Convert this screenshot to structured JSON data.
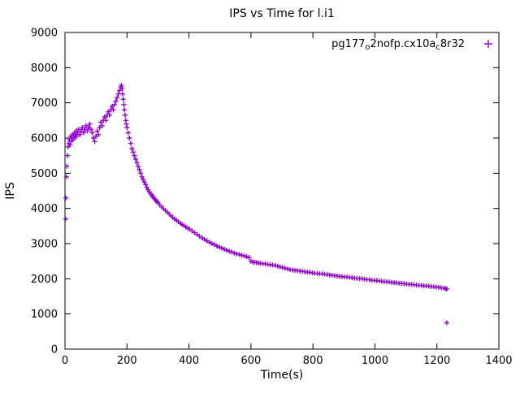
{
  "title": "IPS vs Time for l.i1",
  "legend": {
    "parts": [
      {
        "t": "pg177",
        "sub": false
      },
      {
        "t": "o",
        "sub": true
      },
      {
        "t": "2nofp.cx10a",
        "sub": false
      },
      {
        "t": "c",
        "sub": true
      },
      {
        "t": "8r32",
        "sub": false
      }
    ]
  },
  "chart_data": {
    "type": "scatter",
    "title": "IPS vs Time for l.i1",
    "xlabel": "Time(s)",
    "ylabel": "IPS",
    "xlim": [
      0,
      1400
    ],
    "ylim": [
      0,
      9000
    ],
    "xticks": [
      0,
      200,
      400,
      600,
      800,
      1000,
      1200,
      1400
    ],
    "yticks": [
      0,
      1000,
      2000,
      3000,
      4000,
      5000,
      6000,
      7000,
      8000,
      9000
    ],
    "grid": false,
    "legend_position": "top-right-inside",
    "marker": "plus",
    "marker_color": "#9400D3",
    "series": [
      {
        "name": "pg177_o2nofp.cx10a_c8r32",
        "points": [
          [
            2,
            3700
          ],
          [
            3,
            4300
          ],
          [
            5,
            4900
          ],
          [
            6,
            5200
          ],
          [
            8,
            5500
          ],
          [
            10,
            5750
          ],
          [
            12,
            5850
          ],
          [
            14,
            5950
          ],
          [
            16,
            5800
          ],
          [
            18,
            6050
          ],
          [
            20,
            5900
          ],
          [
            22,
            6000
          ],
          [
            24,
            6100
          ],
          [
            26,
            5950
          ],
          [
            28,
            6050
          ],
          [
            30,
            6150
          ],
          [
            32,
            6000
          ],
          [
            34,
            6100
          ],
          [
            36,
            6200
          ],
          [
            38,
            6050
          ],
          [
            40,
            6150
          ],
          [
            44,
            6250
          ],
          [
            48,
            6100
          ],
          [
            52,
            6200
          ],
          [
            56,
            6300
          ],
          [
            60,
            6150
          ],
          [
            64,
            6250
          ],
          [
            68,
            6350
          ],
          [
            72,
            6200
          ],
          [
            76,
            6300
          ],
          [
            80,
            6400
          ],
          [
            84,
            6250
          ],
          [
            88,
            6150
          ],
          [
            92,
            6000
          ],
          [
            96,
            5900
          ],
          [
            100,
            6050
          ],
          [
            104,
            6200
          ],
          [
            108,
            6100
          ],
          [
            112,
            6300
          ],
          [
            116,
            6450
          ],
          [
            120,
            6350
          ],
          [
            124,
            6500
          ],
          [
            128,
            6600
          ],
          [
            132,
            6500
          ],
          [
            136,
            6650
          ],
          [
            140,
            6750
          ],
          [
            144,
            6650
          ],
          [
            148,
            6800
          ],
          [
            152,
            6900
          ],
          [
            156,
            6800
          ],
          [
            160,
            6950
          ],
          [
            164,
            7050
          ],
          [
            168,
            7150
          ],
          [
            172,
            7250
          ],
          [
            176,
            7350
          ],
          [
            180,
            7450
          ],
          [
            182,
            7500
          ],
          [
            184,
            7400
          ],
          [
            186,
            7250
          ],
          [
            188,
            7100
          ],
          [
            190,
            6950
          ],
          [
            192,
            6800
          ],
          [
            194,
            6650
          ],
          [
            196,
            6500
          ],
          [
            198,
            6400
          ],
          [
            200,
            6300
          ],
          [
            204,
            6150
          ],
          [
            208,
            6000
          ],
          [
            212,
            5850
          ],
          [
            216,
            5700
          ],
          [
            220,
            5600
          ],
          [
            224,
            5500
          ],
          [
            228,
            5400
          ],
          [
            232,
            5300
          ],
          [
            236,
            5200
          ],
          [
            240,
            5100
          ],
          [
            244,
            5000
          ],
          [
            248,
            4900
          ],
          [
            252,
            4820
          ],
          [
            256,
            4750
          ],
          [
            260,
            4680
          ],
          [
            264,
            4600
          ],
          [
            268,
            4530
          ],
          [
            272,
            4470
          ],
          [
            276,
            4420
          ],
          [
            280,
            4370
          ],
          [
            284,
            4330
          ],
          [
            288,
            4280
          ],
          [
            292,
            4240
          ],
          [
            296,
            4200
          ],
          [
            300,
            4160
          ],
          [
            306,
            4100
          ],
          [
            312,
            4040
          ],
          [
            318,
            3990
          ],
          [
            324,
            3940
          ],
          [
            330,
            3890
          ],
          [
            336,
            3840
          ],
          [
            342,
            3790
          ],
          [
            348,
            3740
          ],
          [
            354,
            3700
          ],
          [
            360,
            3660
          ],
          [
            366,
            3620
          ],
          [
            372,
            3580
          ],
          [
            378,
            3540
          ],
          [
            384,
            3510
          ],
          [
            390,
            3470
          ],
          [
            396,
            3440
          ],
          [
            402,
            3410
          ],
          [
            410,
            3360
          ],
          [
            418,
            3310
          ],
          [
            426,
            3260
          ],
          [
            434,
            3210
          ],
          [
            442,
            3160
          ],
          [
            450,
            3120
          ],
          [
            458,
            3080
          ],
          [
            466,
            3040
          ],
          [
            474,
            3000
          ],
          [
            482,
            2970
          ],
          [
            490,
            2930
          ],
          [
            498,
            2900
          ],
          [
            506,
            2870
          ],
          [
            514,
            2840
          ],
          [
            522,
            2810
          ],
          [
            530,
            2780
          ],
          [
            538,
            2760
          ],
          [
            546,
            2730
          ],
          [
            554,
            2710
          ],
          [
            562,
            2690
          ],
          [
            570,
            2670
          ],
          [
            578,
            2650
          ],
          [
            586,
            2630
          ],
          [
            594,
            2600
          ],
          [
            600,
            2500
          ],
          [
            606,
            2480
          ],
          [
            612,
            2470
          ],
          [
            618,
            2460
          ],
          [
            624,
            2450
          ],
          [
            630,
            2440
          ],
          [
            638,
            2430
          ],
          [
            646,
            2420
          ],
          [
            654,
            2410
          ],
          [
            662,
            2400
          ],
          [
            670,
            2390
          ],
          [
            678,
            2380
          ],
          [
            686,
            2360
          ],
          [
            694,
            2340
          ],
          [
            702,
            2320
          ],
          [
            710,
            2300
          ],
          [
            718,
            2280
          ],
          [
            726,
            2260
          ],
          [
            734,
            2250
          ],
          [
            742,
            2240
          ],
          [
            750,
            2230
          ],
          [
            758,
            2220
          ],
          [
            766,
            2210
          ],
          [
            774,
            2200
          ],
          [
            782,
            2190
          ],
          [
            790,
            2180
          ],
          [
            798,
            2170
          ],
          [
            806,
            2160
          ],
          [
            814,
            2150
          ],
          [
            822,
            2145
          ],
          [
            830,
            2140
          ],
          [
            838,
            2130
          ],
          [
            846,
            2120
          ],
          [
            854,
            2110
          ],
          [
            862,
            2100
          ],
          [
            870,
            2090
          ],
          [
            878,
            2080
          ],
          [
            886,
            2070
          ],
          [
            894,
            2060
          ],
          [
            902,
            2055
          ],
          [
            910,
            2050
          ],
          [
            918,
            2040
          ],
          [
            926,
            2030
          ],
          [
            934,
            2020
          ],
          [
            942,
            2010
          ],
          [
            950,
            2005
          ],
          [
            958,
            2000
          ],
          [
            966,
            1990
          ],
          [
            974,
            1980
          ],
          [
            982,
            1970
          ],
          [
            990,
            1960
          ],
          [
            998,
            1955
          ],
          [
            1006,
            1950
          ],
          [
            1014,
            1940
          ],
          [
            1022,
            1930
          ],
          [
            1030,
            1920
          ],
          [
            1038,
            1915
          ],
          [
            1046,
            1910
          ],
          [
            1054,
            1900
          ],
          [
            1062,
            1890
          ],
          [
            1070,
            1880
          ],
          [
            1078,
            1875
          ],
          [
            1086,
            1870
          ],
          [
            1094,
            1860
          ],
          [
            1102,
            1850
          ],
          [
            1110,
            1845
          ],
          [
            1118,
            1840
          ],
          [
            1126,
            1830
          ],
          [
            1134,
            1820
          ],
          [
            1142,
            1815
          ],
          [
            1150,
            1810
          ],
          [
            1158,
            1800
          ],
          [
            1166,
            1795
          ],
          [
            1174,
            1790
          ],
          [
            1182,
            1780
          ],
          [
            1190,
            1775
          ],
          [
            1198,
            1765
          ],
          [
            1206,
            1755
          ],
          [
            1214,
            1745
          ],
          [
            1222,
            1735
          ],
          [
            1228,
            1720
          ],
          [
            1232,
            1710
          ],
          [
            1232,
            750
          ]
        ]
      }
    ]
  }
}
